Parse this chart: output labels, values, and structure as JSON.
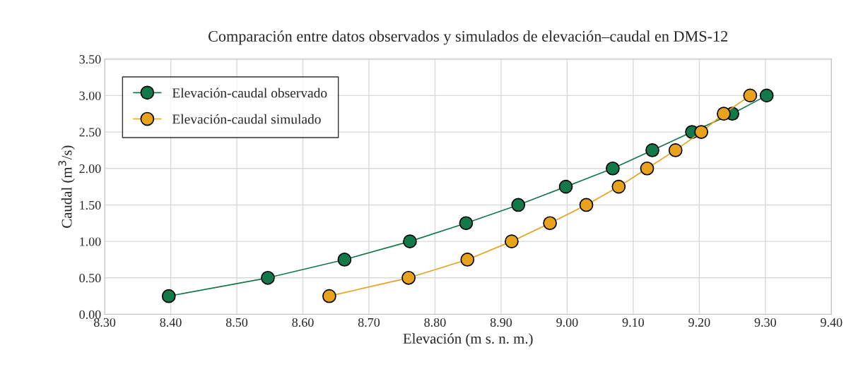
{
  "chart_data": {
    "type": "line",
    "title": "Comparación entre datos observados y simulados de elevación–caudal en DMS-12",
    "xlabel": "Elevación (m s. n. m.)",
    "ylabel": "Caudal (m$^{3}$/s)",
    "series": [
      {
        "name": "Elevación-caudal observado",
        "color": "#13784a",
        "x": [
          8.397,
          8.547,
          8.663,
          8.762,
          8.847,
          8.926,
          8.998,
          9.069,
          9.129,
          9.189,
          9.25,
          9.302
        ],
        "values": [
          0.25,
          0.5,
          0.75,
          1.0,
          1.25,
          1.5,
          1.75,
          2.0,
          2.25,
          2.5,
          2.75,
          3.0
        ]
      },
      {
        "name": "Elevación-caudal simulado",
        "color": "#e8a21c",
        "x": [
          8.64,
          8.76,
          8.849,
          8.916,
          8.974,
          9.029,
          9.078,
          9.121,
          9.164,
          9.203,
          9.237,
          9.277
        ],
        "values": [
          0.25,
          0.5,
          0.75,
          1.0,
          1.25,
          1.5,
          1.75,
          2.0,
          2.25,
          2.5,
          2.75,
          3.0
        ]
      }
    ],
    "xlim": [
      8.3,
      9.4
    ],
    "xticks": [
      {
        "value": 8.3,
        "label": "8.30"
      },
      {
        "value": 8.4,
        "label": "8.40"
      },
      {
        "value": 8.5,
        "label": "8.50"
      },
      {
        "value": 8.6,
        "label": "8.60"
      },
      {
        "value": 8.7,
        "label": "8.70"
      },
      {
        "value": 8.8,
        "label": "8.80"
      },
      {
        "value": 8.9,
        "label": "8.90"
      },
      {
        "value": 9.0,
        "label": "9.00"
      },
      {
        "value": 9.1,
        "label": "9.10"
      },
      {
        "value": 9.2,
        "label": "9.20"
      },
      {
        "value": 9.3,
        "label": "9.30"
      },
      {
        "value": 9.4,
        "label": "9.40"
      }
    ],
    "ylim": [
      0,
      3.5
    ],
    "yticks": [
      {
        "value": 0,
        "label": "0.00"
      },
      {
        "value": 0.5,
        "label": "0.50"
      },
      {
        "value": 1.0,
        "label": "1.00"
      },
      {
        "value": 1.5,
        "label": "1.50"
      },
      {
        "value": 2.0,
        "label": "2.00"
      },
      {
        "value": 2.5,
        "label": "2.50"
      },
      {
        "value": 3.0,
        "label": "3.00"
      },
      {
        "value": 3.5,
        "label": "3.50"
      }
    ],
    "grid": true,
    "legend": "top left",
    "marker": "circle",
    "line_style": "solid"
  }
}
